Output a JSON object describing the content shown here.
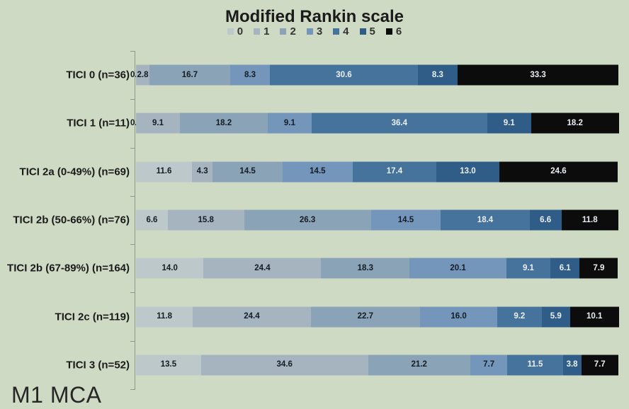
{
  "title": "Modified Rankin scale",
  "footer_label": "M1 MCA",
  "colors": {
    "background": "#cedac4",
    "axis": "#8f968a",
    "dark_label": "#141c24",
    "light_label": "#eaeff3"
  },
  "legend": {
    "position": "top",
    "items": [
      {
        "label": "0",
        "color": "#bdc8ca"
      },
      {
        "label": "1",
        "color": "#a6b4bf"
      },
      {
        "label": "2",
        "color": "#8ba3b6"
      },
      {
        "label": "3",
        "color": "#7496bb"
      },
      {
        "label": "4",
        "color": "#46739c"
      },
      {
        "label": "5",
        "color": "#2f5d88"
      },
      {
        "label": "6",
        "color": "#0c0c0c"
      }
    ]
  },
  "chart_data": {
    "type": "bar",
    "stacked": true,
    "orientation": "horizontal",
    "title": "Modified Rankin scale",
    "xlabel": "",
    "ylabel": "",
    "xlim": [
      0,
      100
    ],
    "grid": false,
    "legend_position": "top",
    "value_format": "one_decimal",
    "categories": [
      "TICI 0 (n=36)",
      "TICI 1 (n=11)",
      "TICI 2a (0-49%) (n=69)",
      "TICI 2b (50-66%) (n=76)",
      "TICI 2b (67-89%) (n=164)",
      "TICI 2c (n=119)",
      "TICI 3 (n=52)"
    ],
    "series": [
      {
        "name": "0",
        "color": "#bdc8ca",
        "label_color": "#141c24",
        "values": [
          0.0,
          0.0,
          11.6,
          6.6,
          14.0,
          11.8,
          13.5
        ]
      },
      {
        "name": "1",
        "color": "#a6b4bf",
        "label_color": "#141c24",
        "values": [
          2.8,
          9.1,
          4.3,
          15.8,
          24.4,
          24.4,
          34.6
        ]
      },
      {
        "name": "2",
        "color": "#8ba3b6",
        "label_color": "#141c24",
        "values": [
          16.7,
          18.2,
          14.5,
          26.3,
          18.3,
          22.7,
          21.2
        ]
      },
      {
        "name": "3",
        "color": "#7496bb",
        "label_color": "#141c24",
        "values": [
          8.3,
          9.1,
          14.5,
          14.5,
          20.1,
          16.0,
          7.7
        ]
      },
      {
        "name": "4",
        "color": "#46739c",
        "label_color": "#eaeff3",
        "values": [
          30.6,
          36.4,
          17.4,
          18.4,
          9.1,
          9.2,
          11.5
        ]
      },
      {
        "name": "5",
        "color": "#2f5d88",
        "label_color": "#eaeff3",
        "values": [
          8.3,
          9.1,
          13.0,
          6.6,
          6.1,
          5.9,
          3.8
        ]
      },
      {
        "name": "6",
        "color": "#0c0c0c",
        "label_color": "#eaeff3",
        "values": [
          33.3,
          18.2,
          24.6,
          11.8,
          7.9,
          10.1,
          7.7
        ]
      }
    ]
  }
}
